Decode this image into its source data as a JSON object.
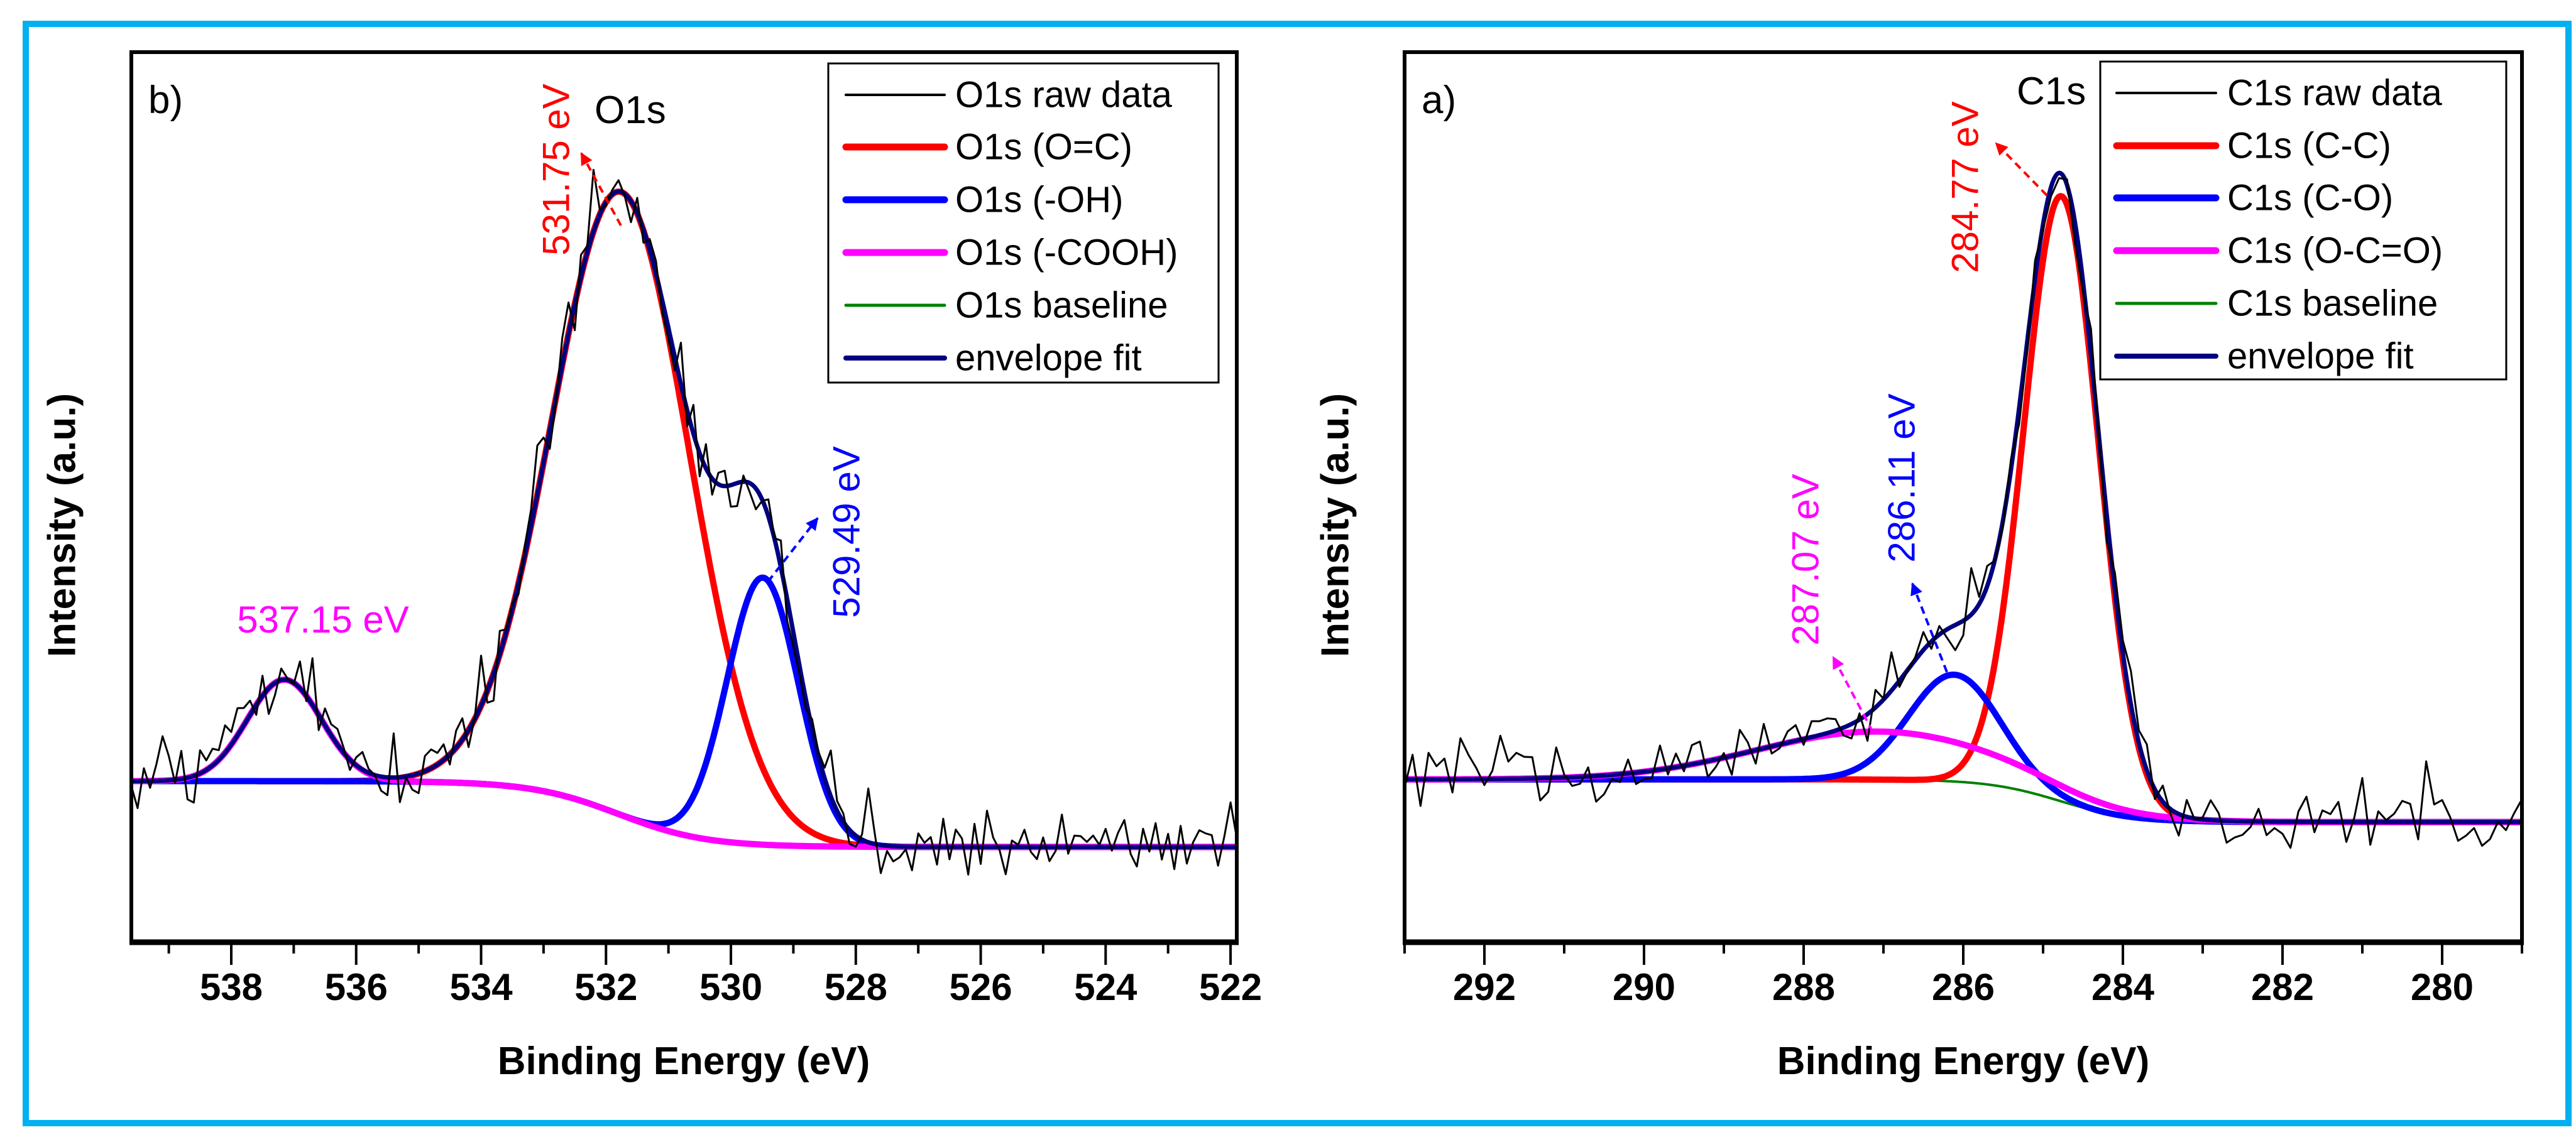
{
  "colors": {
    "frame": "#00b0f0",
    "raw": "#000000",
    "red": "#ff0000",
    "blue": "#0000ff",
    "magenta": "#ff00ff",
    "baseline": "#008000",
    "envelope": "#000080"
  },
  "chart_data": [
    {
      "type": "line",
      "panel_label": "b)",
      "peak_label": "O1s",
      "xlabel": "Binding Energy (eV)",
      "ylabel": "Intensity (a.u.)",
      "xlim": [
        539.6,
        521.9
      ],
      "ylim": [
        0,
        100
      ],
      "x_ticks": [
        538,
        536,
        534,
        532,
        530,
        528,
        526,
        524,
        522
      ],
      "x_minor_step": 1,
      "grid": false,
      "legend_position": "top-right",
      "series": [
        {
          "name": "O1s raw data",
          "color": "#000000",
          "kind": "raw"
        },
        {
          "name": "O1s (O=C)",
          "color": "#ff0000",
          "kind": "component",
          "center": 531.75,
          "amplitude": 70,
          "fwhm": 2.6
        },
        {
          "name": "O1s (-OH)",
          "color": "#0000ff",
          "kind": "component",
          "center": 529.49,
          "amplitude": 30,
          "fwhm": 1.35
        },
        {
          "name": "O1s (-COOH)",
          "color": "#ff00ff",
          "kind": "component",
          "center": 537.15,
          "amplitude": 11.4,
          "fwhm": 1.4
        },
        {
          "name": "O1s baseline",
          "color": "#008000",
          "kind": "baseline",
          "high": 18.1,
          "low": 10.7,
          "center": 531.8,
          "width": 0.7
        },
        {
          "name": "envelope fit",
          "color": "#000080",
          "kind": "envelope"
        }
      ],
      "raw_step": 0.1,
      "raw_noise": 3.2,
      "annotations": [
        {
          "text": "531.75 eV",
          "color": "#ff0000"
        },
        {
          "text": "529.49 eV",
          "color": "#0000ff"
        },
        {
          "text": "537.15 eV",
          "color": "#ff00ff"
        }
      ]
    },
    {
      "type": "line",
      "panel_label": "a)",
      "peak_label": "C1s",
      "xlabel": "Binding Energy (eV)",
      "ylabel": "Intensity (a.u.)",
      "xlim": [
        293.0,
        279.0
      ],
      "ylim": [
        0,
        100
      ],
      "x_ticks": [
        292,
        290,
        288,
        286,
        284,
        282,
        280
      ],
      "x_minor_step": 1,
      "grid": false,
      "legend_position": "top-right",
      "series": [
        {
          "name": "C1s raw data",
          "color": "#000000",
          "kind": "raw"
        },
        {
          "name": "C1s (C-C)",
          "color": "#ff0000",
          "kind": "component",
          "center": 284.77,
          "amplitude": 68,
          "fwhm": 1.1
        },
        {
          "name": "C1s (C-O)",
          "color": "#0000ff",
          "kind": "component",
          "center": 286.11,
          "amplitude": 12,
          "fwhm": 1.35
        },
        {
          "name": "C1s (O-C=O)",
          "color": "#ff00ff",
          "kind": "component",
          "center": 287.07,
          "amplitude": 5.4,
          "fwhm": 3.6
        },
        {
          "name": "C1s baseline",
          "color": "#008000",
          "kind": "baseline",
          "high": 18.3,
          "low": 13.5,
          "center": 284.8,
          "width": 0.45
        },
        {
          "name": "envelope fit",
          "color": "#000080",
          "kind": "envelope"
        }
      ],
      "raw_step": 0.1,
      "raw_noise": 3.0,
      "annotations": [
        {
          "text": "284.77 eV",
          "color": "#ff0000"
        },
        {
          "text": "286.11 eV",
          "color": "#0000ff"
        },
        {
          "text": "287.07 eV",
          "color": "#ff00ff"
        }
      ]
    }
  ]
}
